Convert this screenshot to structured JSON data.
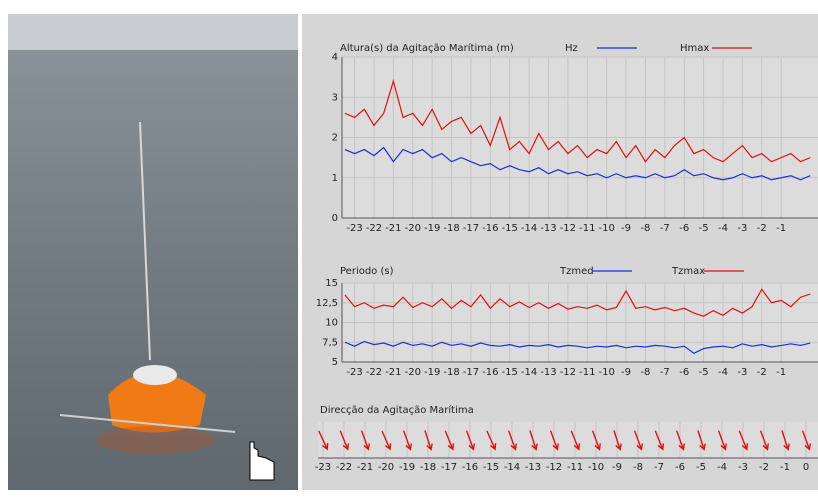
{
  "chart_data": [
    {
      "type": "line",
      "title": "Altura(s) da Agitação Marítima (m)",
      "x": [
        -23.5,
        -23,
        -22.5,
        -22,
        -21.5,
        -21,
        -20.5,
        -20,
        -19.5,
        -19,
        -18.5,
        -18,
        -17.5,
        -17,
        -16.5,
        -16,
        -15.5,
        -15,
        -14.5,
        -14,
        -13.5,
        -13,
        -12.5,
        -12,
        -11.5,
        -11,
        -10.5,
        -10,
        -9.5,
        -9,
        -8.5,
        -8,
        -7.5,
        -7,
        -6.5,
        -6,
        -5.5,
        -5,
        -4.5,
        -4,
        -3.5,
        -3,
        -2.5,
        -2,
        -1.5,
        -1,
        -0.5,
        0,
        0.5
      ],
      "series": [
        {
          "name": "Hz",
          "color": "#1a2fd6",
          "values": [
            1.7,
            1.6,
            1.7,
            1.55,
            1.75,
            1.4,
            1.7,
            1.6,
            1.7,
            1.5,
            1.6,
            1.4,
            1.5,
            1.4,
            1.3,
            1.35,
            1.2,
            1.3,
            1.2,
            1.15,
            1.25,
            1.1,
            1.2,
            1.1,
            1.15,
            1.05,
            1.1,
            1.0,
            1.1,
            1.0,
            1.05,
            1.0,
            1.1,
            1.0,
            1.05,
            1.2,
            1.05,
            1.1,
            1.0,
            0.95,
            1.0,
            1.1,
            1.0,
            1.05,
            0.95,
            1.0,
            1.05,
            0.95,
            1.05
          ]
        },
        {
          "name": "Hmax",
          "color": "#e01010",
          "values": [
            2.6,
            2.5,
            2.7,
            2.3,
            2.6,
            3.4,
            2.5,
            2.6,
            2.3,
            2.7,
            2.2,
            2.4,
            2.5,
            2.1,
            2.3,
            1.8,
            2.5,
            1.7,
            1.9,
            1.6,
            2.1,
            1.7,
            1.9,
            1.6,
            1.8,
            1.5,
            1.7,
            1.6,
            1.9,
            1.5,
            1.8,
            1.4,
            1.7,
            1.5,
            1.8,
            2.0,
            1.6,
            1.7,
            1.5,
            1.4,
            1.6,
            1.8,
            1.5,
            1.6,
            1.4,
            1.5,
            1.6,
            1.4,
            1.5
          ]
        }
      ],
      "xlim": [
        -23.65,
        0.9
      ],
      "xticks": [
        -23,
        -22,
        -21,
        -20,
        -19,
        -18,
        -17,
        -16,
        -15,
        -14,
        -13,
        -12,
        -11,
        -10,
        -9,
        -8,
        -7,
        -6,
        -5,
        -4,
        -3,
        -2,
        -1
      ],
      "ylim": [
        0,
        4
      ],
      "yticks": [
        0,
        1,
        2,
        3,
        4
      ],
      "grid": true
    },
    {
      "type": "line",
      "title": "Periodo (s)",
      "x": [
        -23.5,
        -23,
        -22.5,
        -22,
        -21.5,
        -21,
        -20.5,
        -20,
        -19.5,
        -19,
        -18.5,
        -18,
        -17.5,
        -17,
        -16.5,
        -16,
        -15.5,
        -15,
        -14.5,
        -14,
        -13.5,
        -13,
        -12.5,
        -12,
        -11.5,
        -11,
        -10.5,
        -10,
        -9.5,
        -9,
        -8.5,
        -8,
        -7.5,
        -7,
        -6.5,
        -6,
        -5.5,
        -5,
        -4.5,
        -4,
        -3.5,
        -3,
        -2.5,
        -2,
        -1.5,
        -1,
        -0.5,
        0,
        0.5
      ],
      "series": [
        {
          "name": "Tzmed",
          "color": "#1a2fd6",
          "values": [
            7.5,
            7.0,
            7.6,
            7.2,
            7.4,
            7.0,
            7.5,
            7.1,
            7.3,
            7.0,
            7.5,
            7.1,
            7.3,
            7.0,
            7.4,
            7.1,
            7.0,
            7.2,
            6.9,
            7.1,
            7.0,
            7.2,
            6.9,
            7.1,
            7.0,
            6.8,
            7.0,
            6.9,
            7.1,
            6.8,
            7.0,
            6.9,
            7.1,
            7.0,
            6.8,
            7.0,
            6.1,
            6.7,
            6.9,
            7.0,
            6.8,
            7.3,
            7.0,
            7.2,
            6.9,
            7.1,
            7.3,
            7.1,
            7.4
          ]
        },
        {
          "name": "Tzmax",
          "color": "#e01010",
          "values": [
            13.5,
            12.0,
            12.5,
            11.8,
            12.2,
            12.0,
            13.2,
            11.9,
            12.5,
            12.0,
            13.0,
            11.8,
            12.8,
            12.0,
            13.5,
            11.8,
            13.0,
            12.0,
            12.6,
            11.9,
            12.5,
            11.8,
            12.4,
            11.7,
            12.0,
            11.8,
            12.2,
            11.6,
            11.9,
            14.0,
            11.8,
            12.0,
            11.6,
            11.9,
            11.5,
            11.8,
            11.2,
            10.8,
            11.5,
            10.9,
            11.8,
            11.2,
            12.0,
            14.2,
            12.5,
            12.8,
            12.0,
            13.2,
            13.6
          ]
        }
      ],
      "xlim": [
        -23.65,
        0.9
      ],
      "xticks": [
        -23,
        -22,
        -21,
        -20,
        -19,
        -18,
        -17,
        -16,
        -15,
        -14,
        -13,
        -12,
        -11,
        -10,
        -9,
        -8,
        -7,
        -6,
        -5,
        -4,
        -3,
        -2,
        -1
      ],
      "ylim": [
        5,
        15
      ],
      "yticks": [
        5,
        {
          "value": 7.5,
          "label": "7,5"
        },
        10,
        {
          "value": 12.5,
          "label": "12,5"
        },
        15
      ],
      "grid": true
    },
    {
      "type": "arrow",
      "title": "Direcção da Agitação Marítima",
      "categories": [
        -23,
        -22,
        -21,
        -20,
        -19,
        -18,
        -17,
        -16,
        -15,
        -14,
        -13,
        -12,
        -11,
        -10,
        -9,
        -8,
        -7,
        -6,
        -5,
        -4,
        -3,
        -2,
        -1,
        0
      ],
      "values": [
        335,
        338,
        340,
        336,
        340,
        342,
        338,
        340,
        336,
        340,
        342,
        340,
        338,
        340,
        342,
        340,
        338,
        340,
        342,
        340,
        338,
        340,
        342,
        340
      ],
      "color": "#e01010",
      "grid": true
    }
  ]
}
